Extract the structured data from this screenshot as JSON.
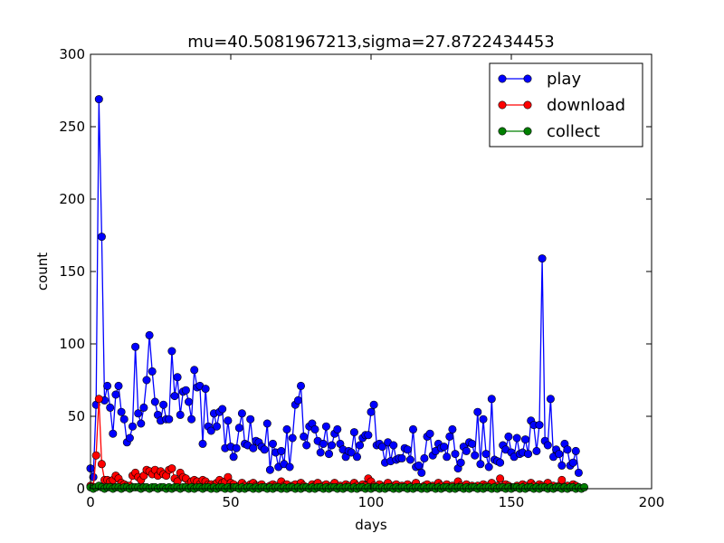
{
  "chart_data": {
    "type": "line",
    "title": "mu=40.5081967213,sigma=27.8722434453",
    "xlabel": "days",
    "ylabel": "count",
    "xlim": [
      0,
      200
    ],
    "ylim": [
      0,
      300
    ],
    "xticks": [
      "0",
      "50",
      "100",
      "150",
      "200"
    ],
    "yticks": [
      "0",
      "50",
      "100",
      "150",
      "200",
      "250",
      "300"
    ],
    "legend_position": "top-right",
    "series": [
      {
        "name": "play",
        "color": "#0000ff",
        "values": [
          14,
          8,
          58,
          269,
          174,
          61,
          71,
          56,
          38,
          65,
          71,
          53,
          48,
          32,
          35,
          43,
          98,
          52,
          45,
          56,
          75,
          106,
          81,
          60,
          51,
          47,
          58,
          48,
          48,
          95,
          64,
          77,
          51,
          67,
          68,
          60,
          48,
          82,
          70,
          71,
          31,
          69,
          43,
          40,
          52,
          43,
          53,
          55,
          28,
          47,
          29,
          22,
          28,
          42,
          52,
          31,
          30,
          48,
          28,
          33,
          32,
          29,
          27,
          45,
          13,
          31,
          25,
          15,
          26,
          17,
          41,
          15,
          35,
          58,
          61,
          71,
          36,
          30,
          43,
          45,
          41,
          33,
          25,
          31,
          43,
          24,
          30,
          38,
          41,
          31,
          27,
          22,
          26,
          25,
          39,
          22,
          30,
          35,
          37,
          37,
          53,
          58,
          30,
          31,
          29,
          18,
          32,
          19,
          30,
          20,
          21,
          21,
          28,
          27,
          20,
          41,
          15,
          16,
          11,
          21,
          36,
          38,
          23,
          26,
          31,
          28,
          29,
          22,
          36,
          41,
          24,
          14,
          18,
          29,
          26,
          32,
          31,
          23,
          53,
          17,
          48,
          24,
          15,
          62,
          20,
          19,
          18,
          30,
          27,
          36,
          25,
          22,
          35,
          24,
          25,
          34,
          24,
          47,
          44,
          26,
          44,
          159,
          33,
          30,
          62,
          22,
          27,
          24,
          16,
          31,
          27,
          16,
          18,
          26,
          11
        ]
      },
      {
        "name": "download",
        "color": "#ff0000",
        "values": [
          2,
          1,
          23,
          62,
          17,
          6,
          6,
          5,
          6,
          9,
          7,
          4,
          3,
          2,
          2,
          9,
          11,
          8,
          6,
          9,
          13,
          12,
          10,
          13,
          9,
          12,
          10,
          9,
          13,
          14,
          7,
          5,
          11,
          8,
          7,
          3,
          5,
          6,
          5,
          3,
          6,
          5,
          3,
          3,
          2,
          4,
          6,
          4,
          5,
          8,
          4,
          3,
          1,
          2,
          4,
          2,
          1,
          3,
          4,
          2,
          2,
          3,
          1,
          1,
          2,
          3,
          2,
          1,
          5,
          2,
          3,
          1,
          2,
          3,
          1,
          4,
          2,
          1,
          1,
          3,
          2,
          4,
          1,
          2,
          3,
          1,
          2,
          4,
          1,
          2,
          1,
          3,
          2,
          1,
          4,
          2,
          1,
          3,
          2,
          7,
          5,
          2,
          1,
          3,
          1,
          2,
          4,
          1,
          2,
          3,
          1,
          2,
          1,
          3,
          1,
          2,
          4,
          1,
          1,
          2,
          3,
          1,
          2,
          1,
          4,
          2,
          1,
          3,
          1,
          2,
          1,
          5,
          2,
          1,
          3,
          1,
          2,
          1,
          2,
          1,
          3,
          2,
          1,
          4,
          1,
          2,
          7,
          1,
          3,
          2,
          1,
          1,
          2,
          1,
          3,
          2,
          1,
          4,
          2,
          1,
          3,
          2,
          1,
          4,
          1,
          2,
          1,
          2,
          6,
          1,
          2,
          1,
          3,
          2,
          1
        ]
      },
      {
        "name": "collect",
        "color": "#008000",
        "values": [
          1,
          0,
          1,
          2,
          1,
          0,
          1,
          1,
          0,
          1,
          1,
          0,
          1,
          1,
          0,
          1,
          1,
          1,
          0,
          1,
          1,
          0,
          1,
          1,
          0,
          1,
          1,
          0,
          1,
          0,
          1,
          1,
          0,
          1,
          1,
          0,
          1,
          0,
          1,
          1,
          0,
          1,
          1,
          0,
          1,
          0,
          1,
          1,
          0,
          1,
          0,
          1,
          1,
          0,
          1,
          0,
          1,
          1,
          0,
          1,
          0,
          1,
          1,
          0,
          1,
          0,
          1,
          1,
          0,
          1,
          0,
          1,
          1,
          0,
          1,
          0,
          1,
          1,
          0,
          1,
          0,
          1,
          1,
          0,
          1,
          0,
          1,
          1,
          0,
          1,
          0,
          1,
          1,
          0,
          1,
          0,
          1,
          1,
          0,
          1,
          0,
          1,
          1,
          0,
          1,
          0,
          1,
          1,
          0,
          1,
          0,
          1,
          1,
          0,
          1,
          0,
          1,
          1,
          0,
          1,
          0,
          1,
          1,
          0,
          1,
          0,
          1,
          1,
          0,
          1,
          0,
          1,
          1,
          0,
          1,
          0,
          1,
          1,
          0,
          1,
          0,
          1,
          1,
          0,
          1,
          0,
          1,
          1,
          0,
          1,
          0,
          1,
          1,
          0,
          1,
          0,
          1,
          1,
          0,
          1,
          0,
          1,
          1,
          0,
          1,
          0,
          1,
          1,
          0,
          1,
          0,
          1,
          1,
          0,
          1,
          0,
          1
        ]
      }
    ]
  }
}
